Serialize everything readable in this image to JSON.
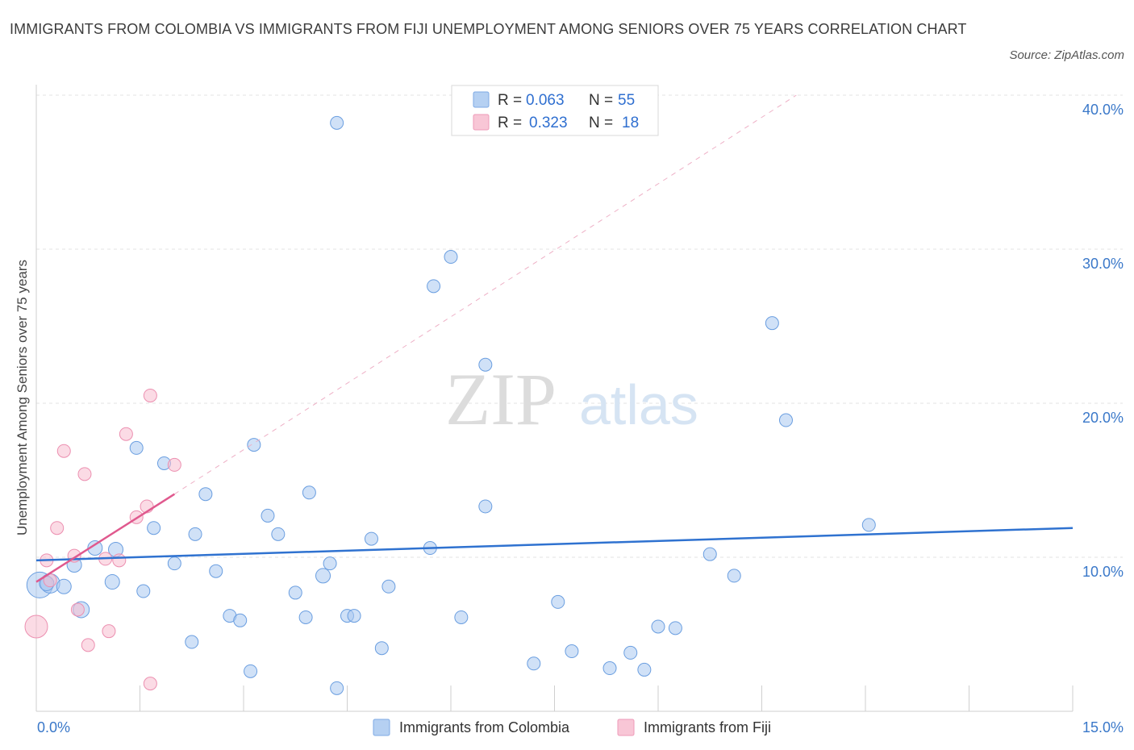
{
  "chart_data": {
    "type": "scatter",
    "title": "IMMIGRANTS FROM COLOMBIA VS IMMIGRANTS FROM FIJI UNEMPLOYMENT AMONG SENIORS OVER 75 YEARS CORRELATION CHART",
    "source": "Source: ZipAtlas.com",
    "xlabel": "",
    "ylabel": "Unemployment Among Seniors over 75 years",
    "xlim": [
      0,
      15
    ],
    "ylim": [
      0,
      40
    ],
    "x_tick_labels": [
      "0.0%",
      "15.0%"
    ],
    "y_ticks": [
      10,
      20,
      30,
      40
    ],
    "y_tick_labels": [
      "10.0%",
      "20.0%",
      "30.0%",
      "40.0%"
    ],
    "grid": true,
    "watermark": {
      "zip": "ZIP",
      "atlas": "atlas"
    },
    "legend": {
      "r_label": "R =",
      "n_label": "N =",
      "entries": [
        {
          "r": "0.063",
          "n": "55"
        },
        {
          "r": "0.323",
          "n": "18"
        }
      ]
    },
    "series": [
      {
        "name": "Immigrants from Colombia",
        "color": "#a9c9f0",
        "stroke": "#6a9ee0",
        "line_color": "#2f72d0",
        "trend": {
          "x0": 0,
          "y0": 9.8,
          "x1": 15,
          "y1": 11.9
        },
        "points": [
          [
            0.05,
            8.2
          ],
          [
            0.2,
            8.3
          ],
          [
            0.4,
            8.1
          ],
          [
            0.55,
            9.5
          ],
          [
            0.85,
            10.6
          ],
          [
            1.15,
            10.5
          ],
          [
            0.65,
            6.6
          ],
          [
            1.1,
            8.4
          ],
          [
            1.55,
            7.8
          ],
          [
            1.45,
            17.1
          ],
          [
            1.85,
            16.1
          ],
          [
            1.7,
            11.9
          ],
          [
            2.0,
            9.6
          ],
          [
            2.25,
            4.5
          ],
          [
            2.3,
            11.5
          ],
          [
            2.45,
            14.1
          ],
          [
            2.6,
            9.1
          ],
          [
            2.8,
            6.2
          ],
          [
            2.95,
            5.9
          ],
          [
            3.1,
            2.6
          ],
          [
            3.15,
            17.3
          ],
          [
            3.35,
            12.7
          ],
          [
            3.5,
            11.5
          ],
          [
            3.75,
            7.7
          ],
          [
            3.9,
            6.1
          ],
          [
            3.95,
            14.2
          ],
          [
            4.15,
            8.8
          ],
          [
            4.25,
            9.6
          ],
          [
            4.35,
            1.5
          ],
          [
            4.5,
            6.2
          ],
          [
            4.6,
            6.2
          ],
          [
            4.85,
            11.2
          ],
          [
            5.0,
            4.1
          ],
          [
            5.1,
            8.1
          ],
          [
            4.35,
            38.2
          ],
          [
            5.7,
            10.6
          ],
          [
            5.75,
            27.6
          ],
          [
            6.0,
            29.5
          ],
          [
            6.15,
            6.1
          ],
          [
            6.5,
            22.5
          ],
          [
            6.5,
            13.3
          ],
          [
            7.2,
            3.1
          ],
          [
            7.55,
            7.1
          ],
          [
            7.75,
            3.9
          ],
          [
            8.3,
            2.8
          ],
          [
            8.6,
            3.8
          ],
          [
            8.8,
            2.7
          ],
          [
            9.0,
            5.5
          ],
          [
            9.25,
            5.4
          ],
          [
            9.75,
            10.2
          ],
          [
            10.1,
            8.8
          ],
          [
            10.65,
            25.2
          ],
          [
            10.85,
            18.9
          ],
          [
            12.05,
            12.1
          ],
          [
            0.15,
            8.3
          ]
        ],
        "point_radii": [
          16,
          12,
          9,
          9,
          9,
          9,
          10,
          9,
          8,
          8,
          8,
          8,
          8,
          8,
          8,
          8,
          8,
          8,
          8,
          8,
          8,
          8,
          8,
          8,
          8,
          8,
          9,
          8,
          8,
          8,
          8,
          8,
          8,
          8,
          8,
          8,
          8,
          8,
          8,
          8,
          8,
          8,
          8,
          8,
          8,
          8,
          8,
          8,
          8,
          8,
          8,
          8,
          8,
          8,
          9
        ]
      },
      {
        "name": "Immigrants from Fiji",
        "color": "#f7bdd0",
        "stroke": "#ec8fb0",
        "line_color": "#e0598e",
        "trend": {
          "x0": 0,
          "y0": 8.4,
          "x1": 2.0,
          "y1": 14.1
        },
        "trend_extension": {
          "x0": 2.0,
          "y0": 14.1,
          "x1": 11.0,
          "y1": 40.0
        },
        "points": [
          [
            0.0,
            5.5
          ],
          [
            0.15,
            9.8
          ],
          [
            0.2,
            8.5
          ],
          [
            0.3,
            11.9
          ],
          [
            0.4,
            16.9
          ],
          [
            0.55,
            10.1
          ],
          [
            0.6,
            6.6
          ],
          [
            0.7,
            15.4
          ],
          [
            0.75,
            4.3
          ],
          [
            1.0,
            9.9
          ],
          [
            1.05,
            5.2
          ],
          [
            1.2,
            9.8
          ],
          [
            1.3,
            18.0
          ],
          [
            1.45,
            12.6
          ],
          [
            1.6,
            13.3
          ],
          [
            1.65,
            1.8
          ],
          [
            1.65,
            20.5
          ],
          [
            2.0,
            16.0
          ]
        ],
        "point_radii": [
          14,
          8,
          8,
          8,
          8,
          8,
          8,
          8,
          8,
          8,
          8,
          8,
          8,
          8,
          8,
          8,
          8,
          8
        ]
      }
    ]
  }
}
